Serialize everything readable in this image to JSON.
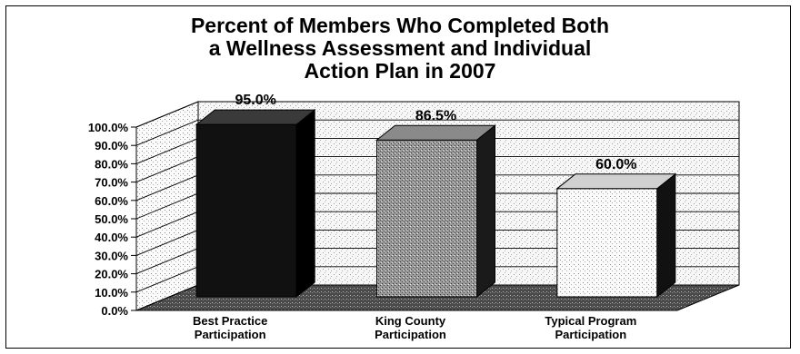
{
  "chart_data": {
    "type": "bar",
    "title": "Percent of Members Who Completed Both\na Wellness Assessment and Individual\nAction Plan in 2007",
    "categories": [
      [
        "Best Practice",
        "Participation"
      ],
      [
        "King County",
        "Participation"
      ],
      [
        "Typical Program",
        "Participation"
      ]
    ],
    "values": [
      95.0,
      86.5,
      60.0
    ],
    "data_labels": [
      "95.0%",
      "86.5%",
      "60.0%"
    ],
    "y_ticks": [
      "0.0%",
      "10.0%",
      "20.0%",
      "30.0%",
      "40.0%",
      "50.0%",
      "60.0%",
      "70.0%",
      "80.0%",
      "90.0%",
      "100.0%"
    ],
    "ylim": [
      0,
      100
    ],
    "grid": true,
    "style": "3d-bar",
    "colors": {
      "bar1_front": "#111111",
      "bar1_side": "#000000",
      "bar1_top": "#3a3a3a",
      "bar2_front": "#b8b8b8",
      "bar2_side": "#1a1a1a",
      "bar2_top": "#8a8a8a",
      "bar3_front": "#f4f4f4",
      "bar3_side": "#111111",
      "bar3_top": "#d0d0d0",
      "floor": "#5a5a5a",
      "wall": "#f2f2f2"
    }
  }
}
